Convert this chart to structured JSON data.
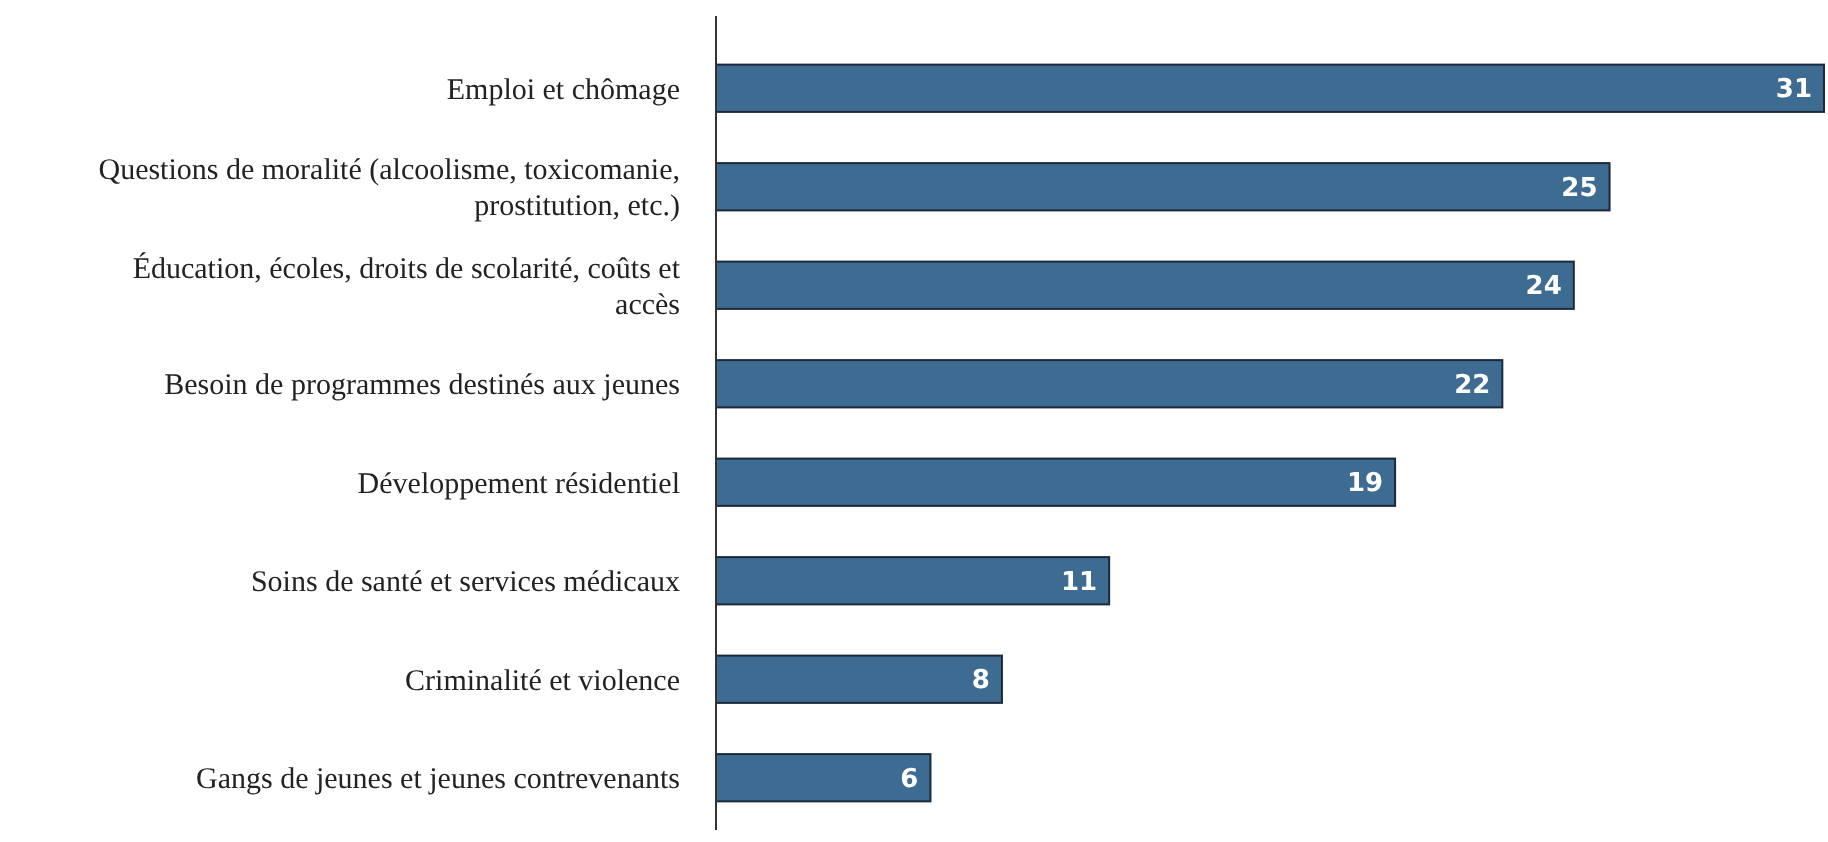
{
  "chart_data": {
    "type": "bar",
    "orientation": "horizontal",
    "data_labels": true,
    "categories": [
      "Emploi et chômage",
      "Questions de moralité (alcoolisme, toxicomanie, prostitution, etc.)",
      "Éducation, écoles, droits de scolarité, coûts et accès",
      "Besoin de programmes destinés aux jeunes",
      "Développement résidentiel",
      "Soins de santé et services médicaux",
      "Criminalité et violence",
      "Gangs de jeunes et jeunes contrevenants"
    ],
    "values": [
      31,
      25,
      24,
      22,
      19,
      11,
      8,
      6
    ],
    "color": "#3d6b91"
  }
}
